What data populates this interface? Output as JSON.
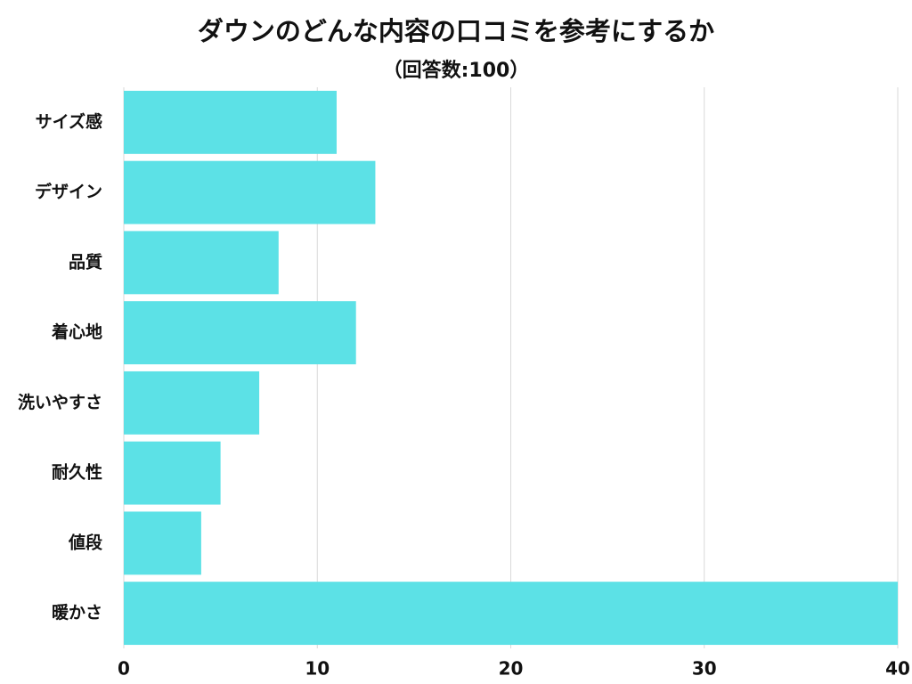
{
  "chart_data": {
    "type": "bar",
    "orientation": "horizontal",
    "title": "ダウンのどんな内容の口コミを参考にするか",
    "subtitle": "（回答数:100）",
    "categories": [
      "サイズ感",
      "デザイン",
      "品質",
      "着心地",
      "洗いやすさ",
      "耐久性",
      "値段",
      "暖かさ"
    ],
    "values": [
      11,
      13,
      8,
      12,
      7,
      5,
      4,
      40
    ],
    "color": "#5ce1e6",
    "xlim": [
      0,
      40
    ],
    "xticks": [
      0,
      10,
      20,
      30,
      40
    ],
    "grid": true
  }
}
